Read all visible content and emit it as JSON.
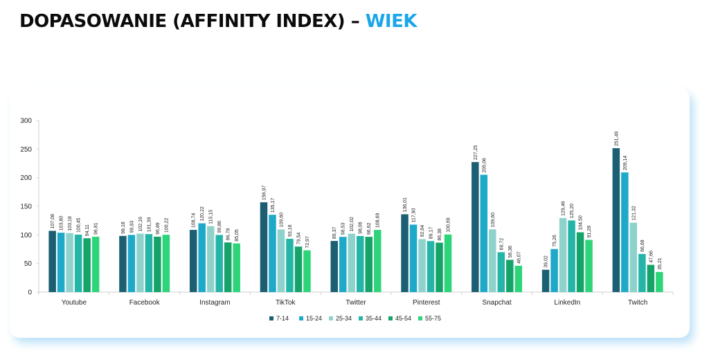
{
  "header": {
    "title_main": "DOPASOWANIE (AFFINITY INDEX) – ",
    "title_accent": "WIEK",
    "colors": {
      "title": "#0b0b0b",
      "accent": "#1aa6e8"
    }
  },
  "chart_data": {
    "type": "bar",
    "title": "",
    "xlabel": "",
    "ylabel": "",
    "ylim": [
      0,
      300
    ],
    "yticks": [
      "0",
      "50",
      "100",
      "150",
      "200",
      "250",
      "300"
    ],
    "grid": false,
    "legend_position": "bottom",
    "categories": [
      "Youtube",
      "Facebook",
      "Instagram",
      "TikTok",
      "Twitter",
      "Pinterest",
      "Snapchat",
      "LinkedIn",
      "Twitch"
    ],
    "series": [
      {
        "name": "7-14",
        "color": "#1c5f73",
        "values": [
          107.08,
          98.18,
          108.74,
          156.97,
          89.37,
          136.01,
          227.25,
          39.02,
          251.49
        ],
        "labels": [
          "107,08",
          "98,18",
          "108,74",
          "156,97",
          "89,37",
          "136,01",
          "227,25",
          "39,02",
          "251,49"
        ]
      },
      {
        "name": "15-24",
        "color": "#1ea9c9",
        "values": [
          103.8,
          99.93,
          120.22,
          135.17,
          96.53,
          117.9,
          205.06,
          75.26,
          209.14
        ],
        "labels": [
          "103,80",
          "99,93",
          "120,22",
          "135,17",
          "96,53",
          "117,90",
          "205,06",
          "75,26",
          "209,14"
        ]
      },
      {
        "name": "25-34",
        "color": "#8fd2cc",
        "values": [
          103.18,
          102.16,
          115.15,
          109.6,
          102.02,
          92.64,
          109.6,
          129.46,
          121.32
        ],
        "labels": [
          "103,18",
          "102,16",
          "115,15",
          "109,60",
          "102,02",
          "92,64",
          "109,60",
          "129,46",
          "121,32"
        ]
      },
      {
        "name": "35-44",
        "color": "#25b5a8",
        "values": [
          100.45,
          101.39,
          99.86,
          93.16,
          98.06,
          89.17,
          69.72,
          125.2,
          66.68
        ],
        "labels": [
          "100,45",
          "101,39",
          "99,86",
          "93,16",
          "98,06",
          "89,17",
          "69,72",
          "125,20",
          "66,68"
        ]
      },
      {
        "name": "45-54",
        "color": "#15a36a",
        "values": [
          94.11,
          96.89,
          86.78,
          79.54,
          96.62,
          86.38,
          56.36,
          104.5,
          47.66
        ],
        "labels": [
          "94,11",
          "96,89",
          "86,78",
          "79,54",
          "96,62",
          "86,38",
          "56,36",
          "104,50",
          "47,66"
        ]
      },
      {
        "name": "55-75",
        "color": "#2ed47a",
        "values": [
          96.81,
          100.22,
          85.05,
          72.97,
          108.69,
          100.69,
          46.07,
          91.28,
          35.21
        ],
        "labels": [
          "96,81",
          "100,22",
          "85,05",
          "72,97",
          "108,69",
          "100,69",
          "46,07",
          "91,28",
          "35,21"
        ]
      }
    ]
  }
}
